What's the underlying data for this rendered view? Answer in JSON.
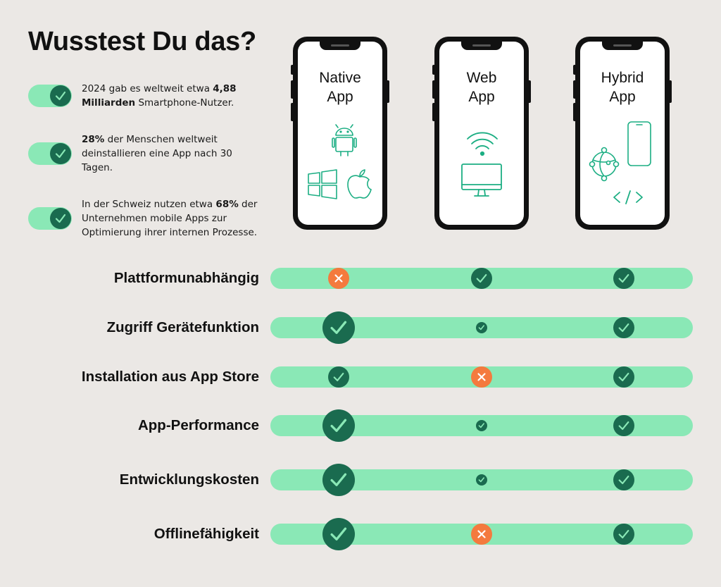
{
  "title": "Wusstest Du das?",
  "facts": [
    {
      "pre": "2024 gab es weltweit etwa ",
      "bold": "4,88 Milliarden",
      "post": " Smartphone-Nutzer."
    },
    {
      "pre": "",
      "bold": "28%",
      "post": " der Menschen weltweit deinstallieren eine App nach 30 Tagen."
    },
    {
      "pre": "In der Schweiz nutzen etwa ",
      "bold": "68%",
      "post": " der Unternehmen mobile Apps zur Optimierung ihrer internen Prozesse."
    }
  ],
  "phones": [
    {
      "line1": "Native",
      "line2": "App",
      "icons": [
        "android-icon",
        "windows-icon",
        "apple-icon"
      ]
    },
    {
      "line1": "Web",
      "line2": "App",
      "icons": [
        "wifi-icon",
        "monitor-icon"
      ]
    },
    {
      "line1": "Hybrid",
      "line2": "App",
      "icons": [
        "smartphone-icon",
        "globe-network-icon",
        "code-icon"
      ]
    }
  ],
  "colors": {
    "background": "#ebe8e5",
    "bar": "#8ae8b6",
    "check": "#1a6b4f",
    "cross": "#f47a3e"
  },
  "rows": [
    {
      "label": "Plattformunabhängig",
      "marks": [
        {
          "type": "cross",
          "size": "medium"
        },
        {
          "type": "check",
          "size": "medium"
        },
        {
          "type": "check",
          "size": "medium"
        }
      ]
    },
    {
      "label": "Zugriff Gerätefunktion",
      "marks": [
        {
          "type": "check",
          "size": "large"
        },
        {
          "type": "check",
          "size": "small"
        },
        {
          "type": "check",
          "size": "medium"
        }
      ]
    },
    {
      "label": "Installation aus App Store",
      "marks": [
        {
          "type": "check",
          "size": "medium"
        },
        {
          "type": "cross",
          "size": "medium"
        },
        {
          "type": "check",
          "size": "medium"
        }
      ]
    },
    {
      "label": "App-Performance",
      "marks": [
        {
          "type": "check",
          "size": "large"
        },
        {
          "type": "check",
          "size": "small"
        },
        {
          "type": "check",
          "size": "medium"
        }
      ]
    },
    {
      "label": "Entwicklungskosten",
      "marks": [
        {
          "type": "check",
          "size": "large"
        },
        {
          "type": "check",
          "size": "small"
        },
        {
          "type": "check",
          "size": "medium"
        }
      ]
    },
    {
      "label": "Offlinefähigkeit",
      "marks": [
        {
          "type": "check",
          "size": "large"
        },
        {
          "type": "cross",
          "size": "medium"
        },
        {
          "type": "check",
          "size": "medium"
        }
      ]
    }
  ]
}
